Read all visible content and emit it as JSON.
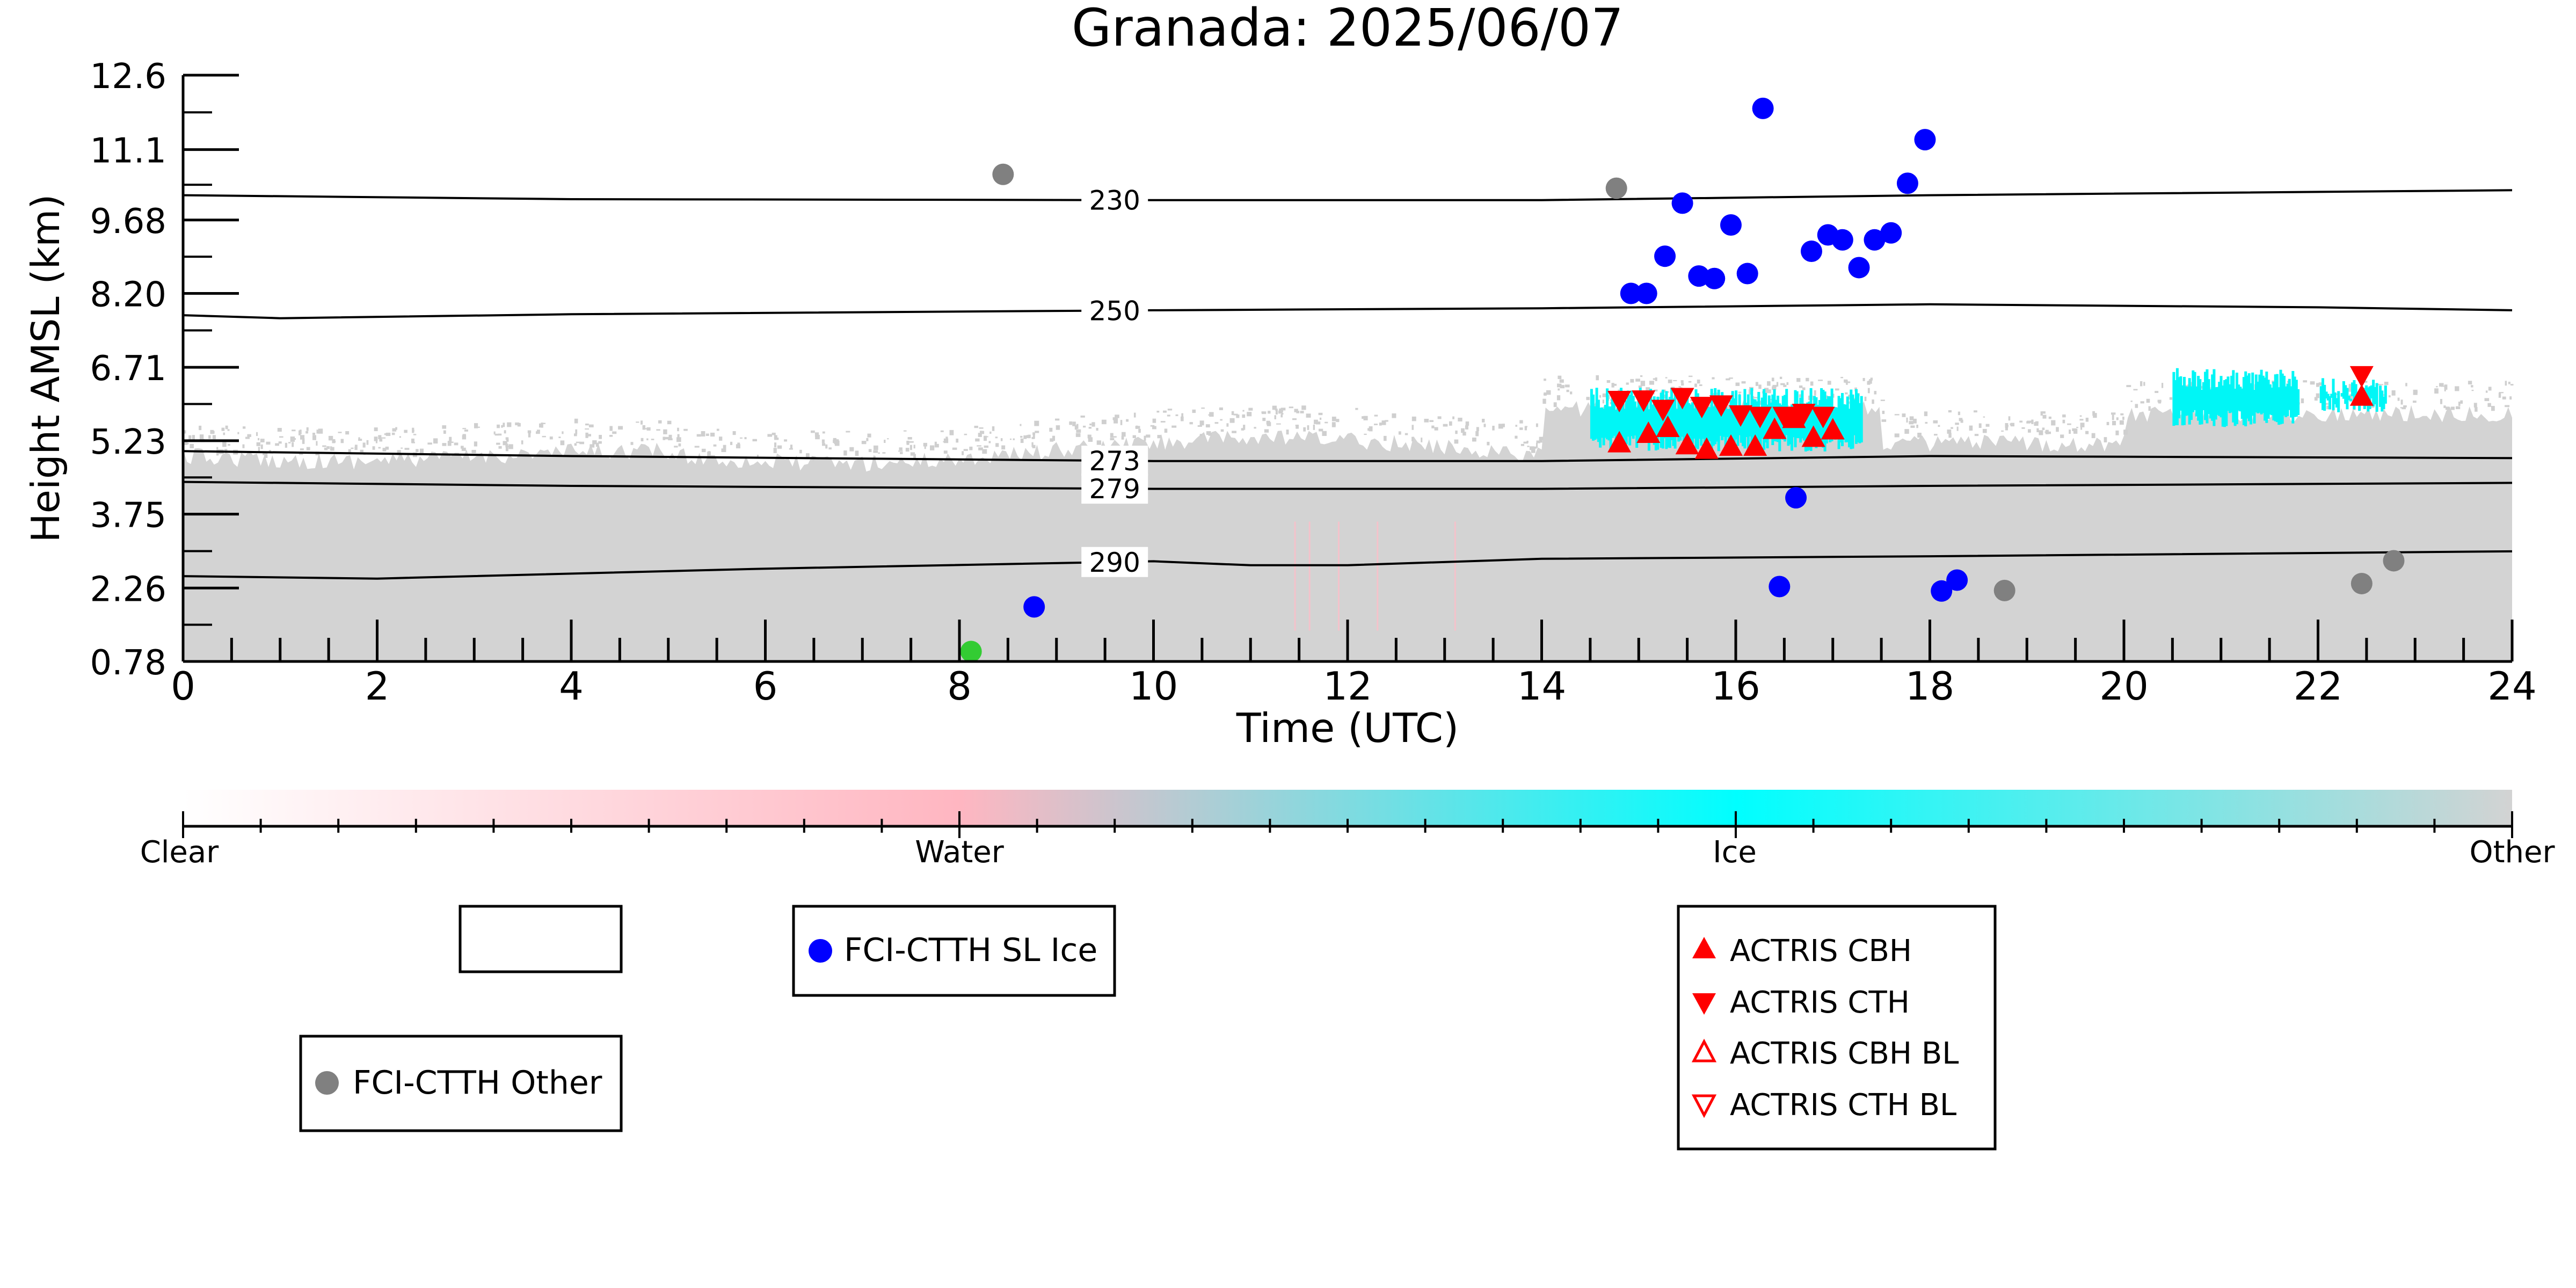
{
  "chart_data": {
    "type": "scatter",
    "title": "Granada: 2025/06/07",
    "xlabel": "Time (UTC)",
    "ylabel": "Height AMSL (km)",
    "xlim": [
      0,
      24
    ],
    "ylim": [
      0.78,
      12.6
    ],
    "x_ticks": [
      "0",
      "2",
      "4",
      "6",
      "8",
      "10",
      "12",
      "14",
      "16",
      "18",
      "20",
      "22",
      "24"
    ],
    "y_ticks": [
      "0.78",
      "2.26",
      "3.75",
      "5.23",
      "6.71",
      "8.20",
      "9.68",
      "11.1",
      "12.6"
    ],
    "y_tick_values": [
      0.78,
      2.26,
      3.75,
      5.23,
      6.71,
      8.2,
      9.68,
      11.1,
      12.6
    ],
    "background": "Target classification (clear / water / ice / other) plotted as time-height field",
    "isotherms": [
      {
        "label": "230",
        "points": [
          [
            0,
            10.18
          ],
          [
            4,
            10.1
          ],
          [
            10,
            10.08
          ],
          [
            14,
            10.08
          ],
          [
            18,
            10.18
          ],
          [
            24,
            10.28
          ]
        ]
      },
      {
        "label": "250",
        "points": [
          [
            0,
            7.76
          ],
          [
            1,
            7.7
          ],
          [
            4,
            7.78
          ],
          [
            10,
            7.86
          ],
          [
            14,
            7.9
          ],
          [
            18,
            7.98
          ],
          [
            22,
            7.92
          ],
          [
            24,
            7.86
          ]
        ]
      },
      {
        "label": "273",
        "points": [
          [
            0,
            5.02
          ],
          [
            4,
            4.92
          ],
          [
            10,
            4.82
          ],
          [
            14,
            4.82
          ],
          [
            18,
            4.92
          ],
          [
            24,
            4.88
          ]
        ]
      },
      {
        "label": "279",
        "points": [
          [
            0,
            4.4
          ],
          [
            4,
            4.32
          ],
          [
            10,
            4.26
          ],
          [
            14,
            4.26
          ],
          [
            18,
            4.32
          ],
          [
            24,
            4.38
          ]
        ]
      },
      {
        "label": "290",
        "points": [
          [
            0,
            2.5
          ],
          [
            2,
            2.45
          ],
          [
            6,
            2.65
          ],
          [
            10,
            2.8
          ],
          [
            11,
            2.72
          ],
          [
            12,
            2.72
          ],
          [
            14,
            2.85
          ],
          [
            18,
            2.9
          ],
          [
            24,
            3.0
          ]
        ]
      }
    ],
    "series": [
      {
        "name": "FCI-CTTH SL Ice",
        "color": "#0000ff",
        "marker": "circle",
        "points": [
          [
            8.77,
            1.88
          ],
          [
            14.92,
            8.2
          ],
          [
            15.08,
            8.2
          ],
          [
            15.27,
            8.95
          ],
          [
            15.45,
            10.02
          ],
          [
            15.62,
            8.55
          ],
          [
            15.78,
            8.5
          ],
          [
            15.95,
            9.58
          ],
          [
            16.12,
            8.6
          ],
          [
            16.28,
            11.93
          ],
          [
            16.45,
            2.29
          ],
          [
            16.62,
            4.08
          ],
          [
            16.78,
            9.05
          ],
          [
            16.95,
            9.38
          ],
          [
            17.1,
            9.28
          ],
          [
            17.27,
            8.72
          ],
          [
            17.43,
            9.28
          ],
          [
            17.6,
            9.42
          ],
          [
            17.77,
            10.42
          ],
          [
            17.95,
            11.3
          ],
          [
            18.12,
            2.2
          ],
          [
            18.28,
            2.42
          ]
        ]
      },
      {
        "name": "FCI-CTTH Other",
        "color": "#808080",
        "marker": "circle",
        "points": [
          [
            8.45,
            10.6
          ],
          [
            14.77,
            10.32
          ],
          [
            18.77,
            2.21
          ],
          [
            22.45,
            2.35
          ],
          [
            22.78,
            2.81
          ]
        ]
      },
      {
        "name": "",
        "color": "#33cc33",
        "marker": "circle",
        "points": [
          [
            8.12,
            0.98
          ]
        ]
      },
      {
        "name": "ACTRIS CBH",
        "color": "#ff0000",
        "marker": "triangle-up",
        "points": [
          [
            14.8,
            5.19
          ],
          [
            15.1,
            5.38
          ],
          [
            15.3,
            5.5
          ],
          [
            15.5,
            5.15
          ],
          [
            15.7,
            5.06
          ],
          [
            15.95,
            5.12
          ],
          [
            16.2,
            5.12
          ],
          [
            16.4,
            5.46
          ],
          [
            16.6,
            5.68
          ],
          [
            16.8,
            5.3
          ],
          [
            17.0,
            5.45
          ],
          [
            22.45,
            6.13
          ]
        ]
      },
      {
        "name": "ACTRIS CTH",
        "color": "#ff0000",
        "marker": "triangle-down",
        "points": [
          [
            14.8,
            6.04
          ],
          [
            15.05,
            6.05
          ],
          [
            15.25,
            5.86
          ],
          [
            15.45,
            6.1
          ],
          [
            15.65,
            5.92
          ],
          [
            15.85,
            5.95
          ],
          [
            16.05,
            5.75
          ],
          [
            16.25,
            5.72
          ],
          [
            16.5,
            5.72
          ],
          [
            16.7,
            5.78
          ],
          [
            16.9,
            5.72
          ],
          [
            22.45,
            6.54
          ]
        ]
      },
      {
        "name": "ACTRIS CBH BL",
        "color": "#ff0000",
        "marker": "triangle-up-open",
        "points": []
      },
      {
        "name": "ACTRIS CTH BL",
        "color": "#ff0000",
        "marker": "triangle-down-open",
        "points": []
      }
    ],
    "ice_cloud_patches": [
      {
        "x": [
          14.5,
          17.3
        ],
        "y": [
          5.0,
          6.3
        ]
      },
      {
        "x": [
          20.5,
          21.8
        ],
        "y": [
          5.5,
          6.7
        ]
      },
      {
        "x": [
          22.0,
          22.7
        ],
        "y": [
          5.8,
          6.5
        ]
      }
    ],
    "colorbar": {
      "labels": [
        "Clear",
        "Water",
        "Ice",
        "Other"
      ],
      "stops": [
        "#ffffff",
        "#ffb6c1",
        "#00ffff",
        "#d3d3d3"
      ]
    },
    "legends": [
      {
        "entries": []
      },
      {
        "entries": [
          "FCI-CTTH SL Ice"
        ]
      },
      {
        "entries": [
          "FCI-CTTH Other"
        ]
      },
      {
        "entries": [
          "ACTRIS CBH",
          "ACTRIS CTH",
          "ACTRIS CBH BL",
          "ACTRIS CTH BL"
        ]
      }
    ],
    "grid": false
  }
}
